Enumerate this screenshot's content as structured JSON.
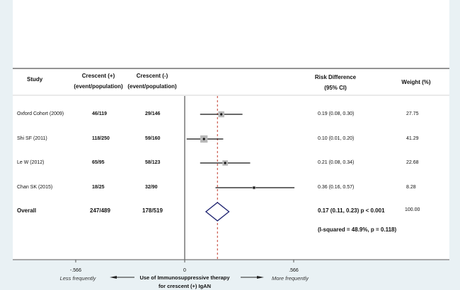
{
  "chart_data": {
    "type": "forest",
    "headers": {
      "study": "Study",
      "crescent_pos": "Crescent (+)",
      "crescent_neg": "Crescent (-)",
      "event_pop": "(event/population)",
      "effect": "Risk Difference",
      "ci": "(95% CI)",
      "weight": "Weight (%)"
    },
    "studies": [
      {
        "name": "Oxford Cohort (2009)",
        "pos": "46/119",
        "neg": "29/146",
        "rd": 0.19,
        "lo": 0.08,
        "hi": 0.3,
        "label": "0.19 (0.08, 0.30)",
        "weight": 27.75,
        "weight_label": "27.75"
      },
      {
        "name": "Shi SF (2011)",
        "pos": "118/250",
        "neg": "59/160",
        "rd": 0.1,
        "lo": 0.01,
        "hi": 0.2,
        "label": "0.10 (0.01, 0.20)",
        "weight": 41.29,
        "weight_label": "41.29"
      },
      {
        "name": "Le W (2012)",
        "pos": "65/95",
        "neg": "58/123",
        "rd": 0.21,
        "lo": 0.08,
        "hi": 0.34,
        "label": "0.21 (0.08, 0.34)",
        "weight": 22.68,
        "weight_label": "22.68"
      },
      {
        "name": "Chan SK (2015)",
        "pos": "18/25",
        "neg": "32/90",
        "rd": 0.36,
        "lo": 0.16,
        "hi": 0.57,
        "label": "0.36 (0.16, 0.57)",
        "weight": 8.28,
        "weight_label": "8.28"
      }
    ],
    "overall": {
      "name": "Overall",
      "pos": "247/489",
      "neg": "178/519",
      "rd": 0.17,
      "lo": 0.11,
      "hi": 0.23,
      "label": "0.17 (0.11, 0.23)  p < 0.001",
      "weight_label": "100.00",
      "heterogeneity": "(I-squared = 48.9%, p = 0.118)"
    },
    "xaxis": {
      "ticks": [
        -0.566,
        0,
        0.566
      ],
      "tick_labels": [
        "-.566",
        "0",
        ".566"
      ],
      "range": [
        -0.566,
        0.566
      ]
    },
    "xlabel_line1": "Use of Immunosuppressive therapy",
    "xlabel_line2": "for crescent (+) IgAN",
    "left_label": "Less frequently",
    "right_label": "More frequently",
    "colors": {
      "ref_line": "#c0392b",
      "diamond": "#1a1f6e",
      "box": "#b8b8b8",
      "bg": "#e9f1f4"
    }
  }
}
